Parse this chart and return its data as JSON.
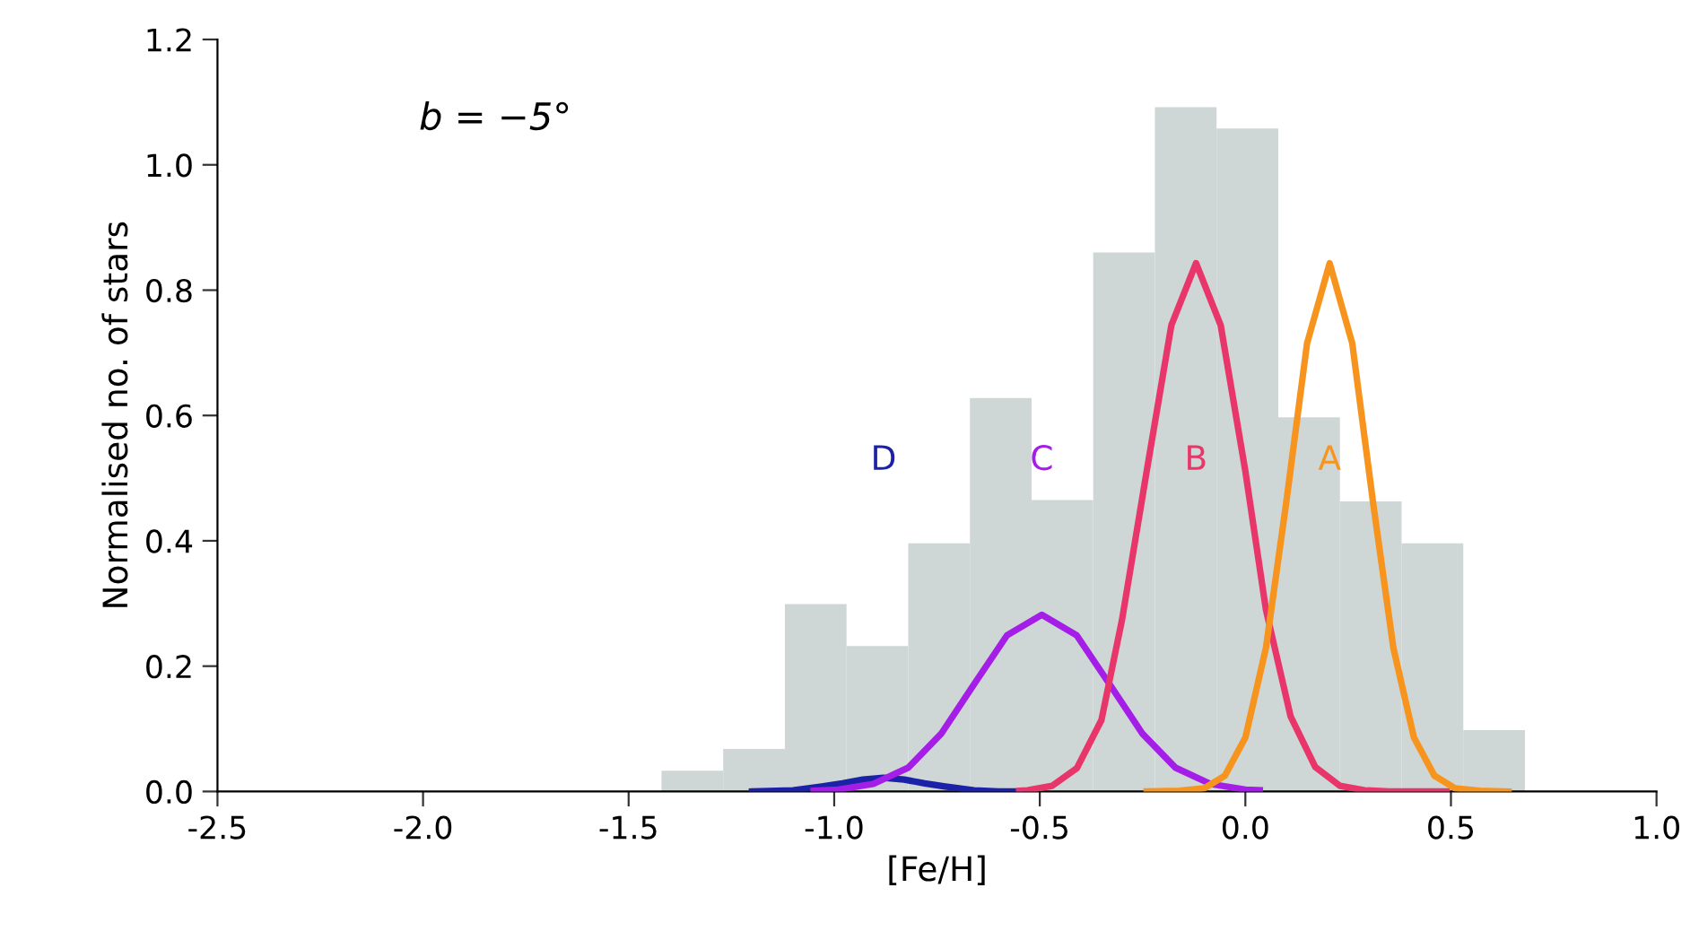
{
  "chart_data": {
    "type": "histogram",
    "xlabel": "[Fe/H]",
    "ylabel": "Normalised no. of stars",
    "bins": [
      -1.42,
      -1.27,
      -1.12,
      -0.97,
      -0.82,
      -0.67,
      -0.52,
      -0.37,
      -0.22,
      -0.07,
      0.08,
      0.23,
      0.38,
      0.53,
      0.68
    ],
    "values": [
      0.033,
      0.068,
      0.299,
      0.232,
      0.396,
      0.628,
      0.465,
      0.86,
      1.092,
      1.058,
      0.597,
      0.463,
      0.396,
      0.098
    ],
    "color": "#cfd6d6",
    "series": [
      {
        "type": "line",
        "name": "D",
        "color": "#1c22a8",
        "x": [
          -1.2,
          -1.1,
          -1.03,
          -0.98,
          -0.93,
          -0.88,
          -0.83,
          -0.78,
          -0.73,
          -0.66,
          -0.6,
          -0.55
        ],
        "values": [
          0.0,
          0.002,
          0.008,
          0.013,
          0.019,
          0.022,
          0.019,
          0.013,
          0.008,
          0.002,
          0.0,
          0.0
        ]
      },
      {
        "type": "line",
        "name": "C",
        "color": "#a51ee8",
        "x": [
          -1.05,
          -0.99,
          -0.905,
          -0.82,
          -0.74,
          -0.66,
          -0.58,
          -0.495,
          -0.41,
          -0.33,
          -0.25,
          -0.17,
          -0.085,
          0.0,
          0.035
        ],
        "values": [
          0.001,
          0.003,
          0.012,
          0.038,
          0.092,
          0.171,
          0.249,
          0.282,
          0.249,
          0.171,
          0.092,
          0.038,
          0.012,
          0.003,
          0.002
        ]
      },
      {
        "type": "line",
        "name": "B",
        "color": "#e8366a",
        "x": [
          -0.55,
          -0.53,
          -0.47,
          -0.41,
          -0.35,
          -0.3,
          -0.24,
          -0.18,
          -0.12,
          -0.06,
          0.0,
          0.05,
          0.11,
          0.17,
          0.23,
          0.29,
          0.35,
          0.42,
          0.49
        ],
        "values": [
          0.001,
          0.002,
          0.009,
          0.037,
          0.114,
          0.274,
          0.511,
          0.744,
          0.843,
          0.744,
          0.511,
          0.29,
          0.12,
          0.039,
          0.009,
          0.002,
          0.0,
          0.0,
          0.0
        ]
      },
      {
        "type": "line",
        "name": "A",
        "color": "#f7941e",
        "x": [
          -0.24,
          -0.16,
          -0.1,
          -0.05,
          0.0,
          0.05,
          0.1,
          0.15,
          0.205,
          0.26,
          0.31,
          0.36,
          0.41,
          0.46,
          0.51,
          0.57,
          0.64
        ],
        "values": [
          0.0,
          0.001,
          0.005,
          0.025,
          0.086,
          0.229,
          0.464,
          0.715,
          0.843,
          0.715,
          0.464,
          0.229,
          0.086,
          0.025,
          0.005,
          0.001,
          0.0
        ]
      }
    ],
    "annotations": [
      "b = −5°"
    ],
    "xlim": [
      -2.5,
      1.0
    ],
    "xticks": [
      -2.5,
      {
        "value": -2.0,
        "label": "-2.0"
      },
      -1.5,
      {
        "value": -1.0,
        "label": "-1.0"
      },
      -0.5,
      {
        "value": 0.0,
        "label": "0.0"
      },
      0.5,
      {
        "value": 1.0,
        "label": "1.0"
      }
    ],
    "ylim": [
      0,
      1.2
    ],
    "yticks": [
      {
        "value": 0.0,
        "label": "0.0"
      },
      0.2,
      0.4,
      0.6,
      0.8,
      {
        "value": 1.0,
        "label": "1.0"
      },
      1.2
    ],
    "grid": false,
    "legend": false
  }
}
